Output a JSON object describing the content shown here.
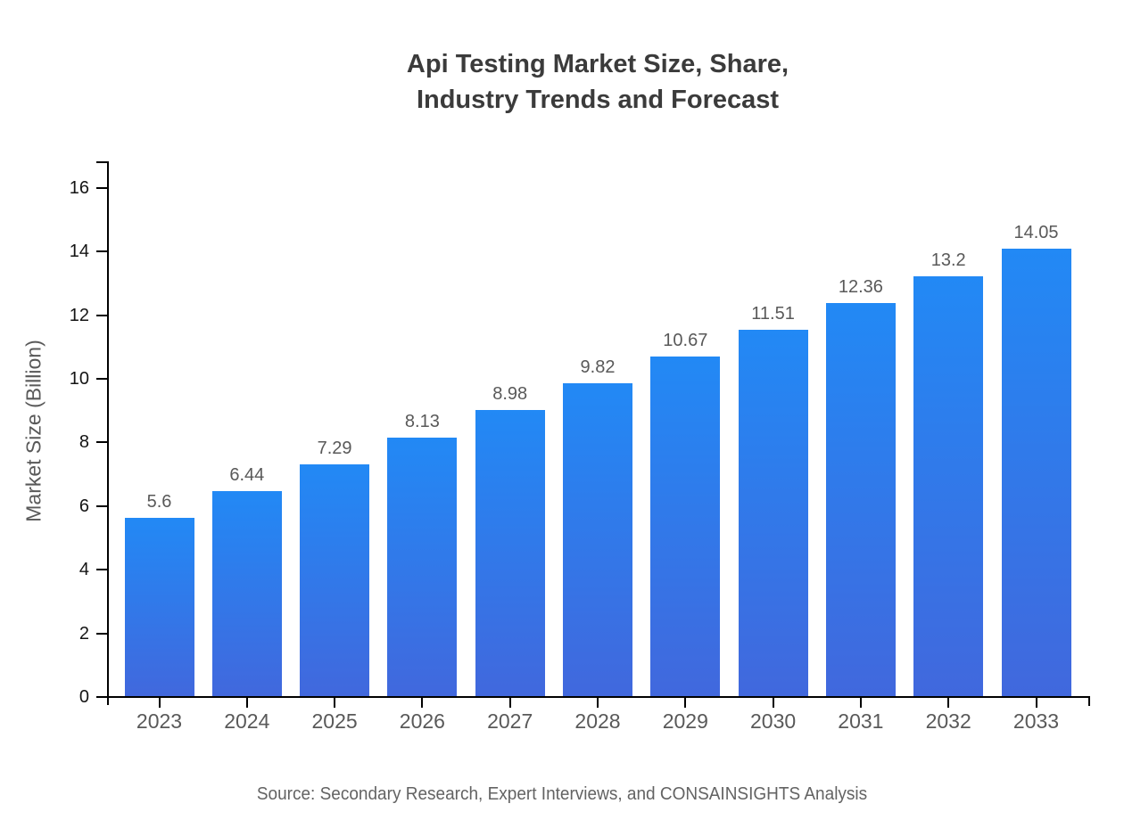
{
  "title": {
    "text": "Api Testing Market Size, Share,\nIndustry Trends and Forecast"
  },
  "source": {
    "text": "Source: Secondary Research, Expert Interviews, and CONSAINSIGHTS Analysis"
  },
  "chart_data": {
    "type": "bar",
    "title": "Api Testing Market Size, Share, Industry Trends and Forecast",
    "categories": [
      "2023",
      "2024",
      "2025",
      "2026",
      "2027",
      "2028",
      "2029",
      "2030",
      "2031",
      "2032",
      "2033"
    ],
    "values": [
      5.6,
      6.44,
      7.29,
      8.13,
      8.98,
      9.82,
      10.67,
      11.51,
      12.36,
      13.2,
      14.05
    ],
    "value_labels": [
      "5.6",
      "6.44",
      "7.29",
      "8.13",
      "8.98",
      "9.82",
      "10.67",
      "11.51",
      "12.36",
      "13.2",
      "14.05"
    ],
    "xlabel": "",
    "ylabel": "Market Size (Billion)",
    "ylim": [
      0,
      16.8
    ],
    "yticks": [
      0,
      2,
      4,
      6,
      8,
      10,
      12,
      14,
      16
    ],
    "grid": false,
    "legend": "none",
    "colors": {
      "bar_gradient_top": "#2289f5",
      "bar_gradient_bottom": "#4168dd",
      "axis": "#000000",
      "y_tick_label": "#141414",
      "x_tick_label": "#595959",
      "value_label": "#595959",
      "title": "#3b3b3b",
      "source": "#636363"
    }
  }
}
